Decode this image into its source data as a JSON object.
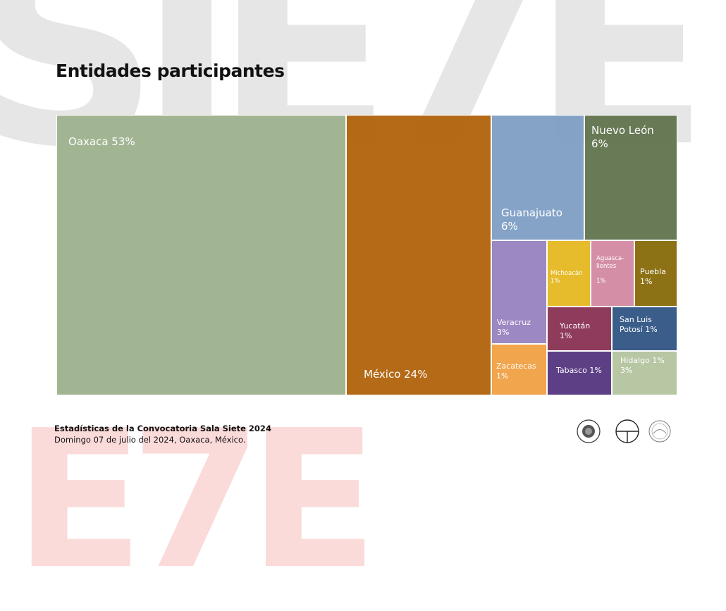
{
  "watermark": {
    "top_text": "SIE7E",
    "bottom_text": "E7E"
  },
  "page_title": "Entidades participantes",
  "chart_data": {
    "type": "treemap",
    "title": "Entidades participantes",
    "items": [
      {
        "label": "Oaxaca 53%",
        "name": "Oaxaca",
        "value": 53,
        "color": "#a2b593"
      },
      {
        "label": "México 24%",
        "name": "México",
        "value": 24,
        "color": "#b1640d"
      },
      {
        "label": "Guanajuato\n6%",
        "name": "Guanajuato",
        "value": 6,
        "color": "#7f9fc5"
      },
      {
        "label": "Nuevo León\n6%",
        "name": "Nuevo León",
        "value": 6,
        "color": "#61744e"
      },
      {
        "label": "Veracruz\n3%",
        "name": "Veracruz",
        "value": 3,
        "color": "#9c88c2"
      },
      {
        "label": "Zacatecas\n1%",
        "name": "Zacatecas",
        "value": 1,
        "color": "#f1a54c"
      },
      {
        "label": "Michoacán\n1%",
        "name": "Michoacán",
        "value": 1,
        "color": "#e6bb2c"
      },
      {
        "label": "Aguasca-\nlientes\n\n1%",
        "name": "Aguascalientes",
        "value": 1,
        "color": "#d48fa7"
      },
      {
        "label": "Puebla\n1%",
        "name": "Puebla",
        "value": 1,
        "color": "#8c7115"
      },
      {
        "label": "Yucatán\n1%",
        "name": "Yucatán",
        "value": 1,
        "color": "#8e3b5c"
      },
      {
        "label": "San Luis\nPotosí 1%",
        "name": "San Luis Potosí",
        "value": 1,
        "color": "#3a5d89"
      },
      {
        "label": "Tabasco 1%",
        "name": "Tabasco",
        "value": 1,
        "color": "#5d3f86"
      },
      {
        "label": "Hidalgo 1%\n3%",
        "name": "Hidalgo",
        "value": 1,
        "color": "#b7c6a3"
      }
    ]
  },
  "footer": {
    "line1": "Estadísticas de la Convocatoria Sala Siete 2024",
    "line2": "Domingo 07 de julio del 2024, Oaxaca, México."
  },
  "logos": [
    "seal-logo-1",
    "circle-crosshair-logo",
    "seal-logo-2"
  ]
}
